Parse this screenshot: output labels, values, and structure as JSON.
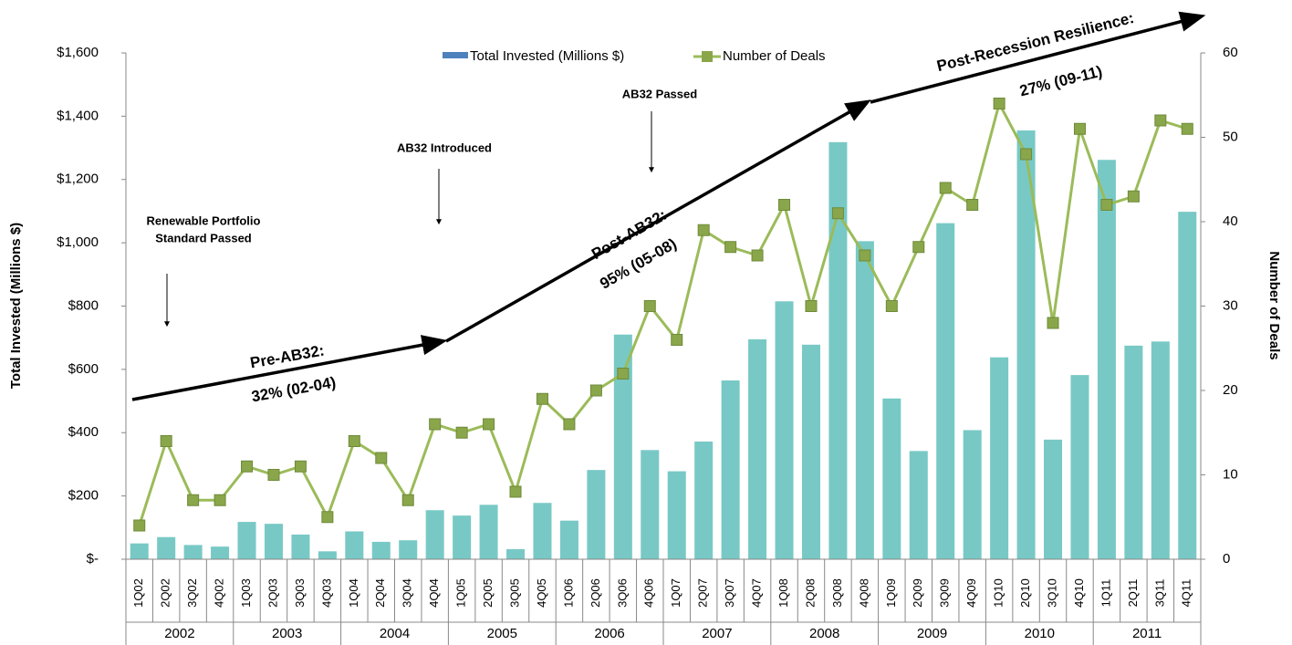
{
  "chart_data": {
    "type": "bar_line",
    "categories": [
      "1Q02",
      "2Q02",
      "3Q02",
      "4Q02",
      "1Q03",
      "2Q03",
      "3Q03",
      "4Q03",
      "1Q04",
      "2Q04",
      "3Q04",
      "4Q04",
      "1Q05",
      "2Q05",
      "3Q05",
      "4Q05",
      "1Q06",
      "2Q06",
      "3Q06",
      "4Q06",
      "1Q07",
      "2Q07",
      "3Q07",
      "4Q07",
      "1Q08",
      "2Q08",
      "3Q08",
      "4Q08",
      "1Q09",
      "2Q09",
      "3Q09",
      "4Q09",
      "1Q10",
      "2Q10",
      "3Q10",
      "4Q10",
      "1Q11",
      "2Q11",
      "3Q11",
      "4Q11"
    ],
    "years": [
      "2002",
      "2003",
      "2004",
      "2005",
      "2006",
      "2007",
      "2008",
      "2009",
      "2010",
      "2011"
    ],
    "series": [
      {
        "name": "Total Invested (Millions $)",
        "color": "#78c9c5",
        "legend_color": "#4f81bd",
        "kind": "bar",
        "values": [
          50,
          70,
          45,
          40,
          118,
          112,
          78,
          25,
          88,
          55,
          60,
          155,
          138,
          172,
          32,
          178,
          122,
          282,
          710,
          345,
          278,
          372,
          565,
          695,
          815,
          678,
          1318,
          1005,
          508,
          342,
          1062,
          408,
          638,
          1355,
          378,
          582,
          1262,
          675,
          688,
          1098
        ]
      },
      {
        "name": "Number of Deals",
        "color": "#9bbb59",
        "marker_color": "#8aa64a",
        "kind": "line",
        "axis": "y2",
        "values": [
          4,
          14,
          7,
          7,
          11,
          10,
          11,
          5,
          14,
          12,
          7,
          16,
          15,
          16,
          8,
          19,
          16,
          20,
          22,
          30,
          26,
          39,
          37,
          36,
          42,
          30,
          41,
          36,
          30,
          37,
          44,
          42,
          54,
          48,
          28,
          51,
          42,
          43,
          52,
          51
        ]
      }
    ],
    "ylabel": "Total Invested (Millions $)",
    "y2label": "Number of Deals",
    "ylim": [
      0,
      1600
    ],
    "yticks": [
      {
        "value": 0,
        "label": "$-"
      },
      {
        "value": 200,
        "label": "$200"
      },
      {
        "value": 400,
        "label": "$400"
      },
      {
        "value": 600,
        "label": "$600"
      },
      {
        "value": 800,
        "label": "$800"
      },
      {
        "value": 1000,
        "label": "$1,000"
      },
      {
        "value": 1200,
        "label": "$1,200"
      },
      {
        "value": 1400,
        "label": "$1,400"
      },
      {
        "value": 1600,
        "label": "$1,600"
      }
    ],
    "y2lim": [
      0,
      60
    ],
    "y2ticks": [
      0,
      10,
      20,
      30,
      40,
      50,
      60
    ],
    "annotations": [
      "Renewable Portfolio",
      "Standard Passed",
      "AB32 Introduced",
      "AB32 Passed",
      "Pre-AB32:",
      "32% (02-04)",
      "Post-AB32:",
      "95% (05-08)",
      "Post-Recession Resilience:",
      "27% (09-11)"
    ]
  }
}
